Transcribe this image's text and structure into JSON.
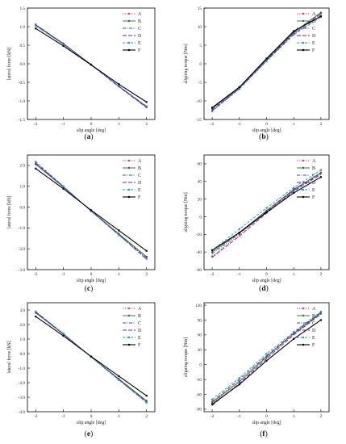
{
  "series_styles": [
    {
      "name": "A",
      "color": "#e0307a",
      "dash": "1.2,1.6",
      "marker": "circle"
    },
    {
      "name": "B",
      "color": "#2f6b2f",
      "dash": "",
      "marker": "circle"
    },
    {
      "name": "C",
      "color": "#3a4a8a",
      "dash": "4,1.5,1,1.5",
      "marker": "none"
    },
    {
      "name": "D",
      "color": "#7a1fa8",
      "dash": "5,2",
      "marker": "none"
    },
    {
      "name": "E",
      "color": "#2b8fd0",
      "dash": "3,2",
      "marker": "square"
    },
    {
      "name": "F",
      "color": "#000000",
      "dash": "",
      "marker": "square"
    }
  ],
  "chart_data": [
    {
      "type": "line",
      "panel_label": "a",
      "xlabel": "slip angle [deg]",
      "ylabel": "lateral force [kN]",
      "xlim": [
        -2.3,
        2.3
      ],
      "ylim": [
        -1.5,
        1.5
      ],
      "xticks": [
        -2,
        -1,
        0,
        1,
        2
      ],
      "xtick_labels": [
        "-2",
        "-1",
        "0",
        "1",
        "2"
      ],
      "yticks": [
        -1.5,
        -1.0,
        -0.5,
        0.0,
        0.5,
        1.0,
        1.5
      ],
      "ytick_labels": [
        "-1.5",
        "-1.0",
        "-0.5",
        "0.0",
        "0.5",
        "1.0",
        "1.5"
      ],
      "x": [
        -2,
        -1,
        0,
        1,
        2
      ],
      "series": [
        {
          "name": "A",
          "values": [
            1.06,
            0.55,
            -0.02,
            -0.6,
            -1.15
          ]
        },
        {
          "name": "B",
          "values": [
            1.05,
            0.54,
            -0.02,
            -0.61,
            -1.17
          ]
        },
        {
          "name": "C",
          "values": [
            1.03,
            0.53,
            -0.02,
            -0.6,
            -1.16
          ]
        },
        {
          "name": "D",
          "values": [
            1.04,
            0.53,
            -0.03,
            -0.62,
            -1.18
          ]
        },
        {
          "name": "E",
          "values": [
            1.02,
            0.52,
            -0.03,
            -0.6,
            -1.14
          ]
        },
        {
          "name": "F",
          "values": [
            0.95,
            0.48,
            -0.03,
            -0.55,
            -1.03
          ]
        }
      ]
    },
    {
      "type": "line",
      "panel_label": "b",
      "xlabel": "slip angle [deg]",
      "ylabel": "aligning torque [Nm]",
      "xlim": [
        -2.3,
        2.3
      ],
      "ylim": [
        -15,
        15
      ],
      "xticks": [
        -2,
        -1,
        0,
        1,
        2
      ],
      "xtick_labels": [
        "-2",
        "-1",
        "0",
        "1",
        "2"
      ],
      "yticks": [
        -15,
        -10,
        -5,
        0,
        5,
        10,
        15
      ],
      "ytick_labels": [
        "-15",
        "-10",
        "-5",
        "0",
        "5",
        "10",
        "15"
      ],
      "x": [
        -2,
        -1,
        0,
        1,
        2
      ],
      "series": [
        {
          "name": "A",
          "values": [
            -12.2,
            -6.5,
            1.0,
            8.2,
            13.6
          ]
        },
        {
          "name": "B",
          "values": [
            -12.0,
            -6.4,
            1.2,
            8.5,
            13.8
          ]
        },
        {
          "name": "C",
          "values": [
            -12.4,
            -6.6,
            0.8,
            8.0,
            13.0
          ]
        },
        {
          "name": "D",
          "values": [
            -12.6,
            -6.7,
            0.9,
            8.3,
            13.4
          ]
        },
        {
          "name": "E",
          "values": [
            -12.8,
            -6.8,
            0.7,
            7.8,
            12.6
          ]
        },
        {
          "name": "F",
          "values": [
            -11.8,
            -6.3,
            1.4,
            8.8,
            12.8
          ]
        }
      ]
    },
    {
      "type": "line",
      "panel_label": "c",
      "xlabel": "slip angle [deg]",
      "ylabel": "lateral force [kN]",
      "xlim": [
        -2.3,
        2.3
      ],
      "ylim": [
        -3.0,
        2.5
      ],
      "xticks": [
        -2,
        -1,
        0,
        1,
        2
      ],
      "xtick_labels": [
        "-2",
        "-1",
        "0",
        "1",
        "2"
      ],
      "yticks": [
        -3.0,
        -2.0,
        -1.0,
        0.0,
        1.0,
        2.0
      ],
      "ytick_labels": [
        "-3.0",
        "-2.0",
        "-1.0",
        "0.0",
        "1.0",
        "2.0"
      ],
      "x": [
        -2,
        -1,
        0,
        1,
        2
      ],
      "series": [
        {
          "name": "A",
          "values": [
            2.1,
            0.98,
            -0.18,
            -1.3,
            -2.4
          ]
        },
        {
          "name": "B",
          "values": [
            2.05,
            0.96,
            -0.18,
            -1.28,
            -2.38
          ]
        },
        {
          "name": "C",
          "values": [
            2.08,
            0.97,
            -0.19,
            -1.32,
            -2.45
          ]
        },
        {
          "name": "D",
          "values": [
            2.12,
            0.99,
            -0.19,
            -1.33,
            -2.5
          ]
        },
        {
          "name": "E",
          "values": [
            2.18,
            1.0,
            -0.2,
            -1.35,
            -2.48
          ]
        },
        {
          "name": "F",
          "values": [
            1.85,
            0.88,
            -0.15,
            -1.12,
            -2.1
          ]
        }
      ]
    },
    {
      "type": "line",
      "panel_label": "d",
      "xlabel": "slip angle [deg]",
      "ylabel": "aligning torque [Nm]",
      "xlim": [
        -2.3,
        2.3
      ],
      "ylim": [
        -60,
        70
      ],
      "xticks": [
        -2,
        -1,
        0,
        1,
        2
      ],
      "xtick_labels": [
        "-2",
        "-1",
        "0",
        "1",
        "2"
      ],
      "yticks": [
        -60,
        -40,
        -20,
        0,
        20,
        40,
        60
      ],
      "ytick_labels": [
        "-60",
        "-40",
        "-20",
        "0",
        "20",
        "40",
        "60"
      ],
      "x": [
        -2,
        -1,
        0,
        1,
        2
      ],
      "series": [
        {
          "name": "A",
          "values": [
            -45,
            -20,
            5,
            30,
            50
          ]
        },
        {
          "name": "B",
          "values": [
            -40,
            -18,
            7,
            31,
            50
          ]
        },
        {
          "name": "C",
          "values": [
            -42,
            -19,
            6,
            30,
            49
          ]
        },
        {
          "name": "D",
          "values": [
            -46,
            -22,
            4,
            29,
            48
          ]
        },
        {
          "name": "E",
          "values": [
            -38,
            -14,
            10,
            33,
            53
          ]
        },
        {
          "name": "F",
          "values": [
            -38,
            -18,
            5,
            27,
            45
          ]
        }
      ]
    },
    {
      "type": "line",
      "panel_label": "e",
      "xlabel": "slip angle [deg]",
      "ylabel": "lateral force [kN]",
      "xlim": [
        -2.3,
        2.3
      ],
      "ylim": [
        -4.0,
        3.5
      ],
      "xticks": [
        -2,
        -1,
        0,
        1,
        2
      ],
      "xtick_labels": [
        "-2",
        "-1",
        "0",
        "1",
        "2"
      ],
      "yticks": [
        -4.0,
        -3.0,
        -2.0,
        -1.0,
        0.0,
        1.0,
        2.0,
        3.0
      ],
      "ytick_labels": [
        "-4.0",
        "-3.0",
        "-2.0",
        "-1.0",
        "0.0",
        "1.0",
        "2.0",
        "3.0"
      ],
      "x": [
        -2,
        -1,
        0,
        1,
        2
      ],
      "series": [
        {
          "name": "A",
          "values": [
            2.85,
            1.35,
            -0.22,
            -1.75,
            -3.28
          ]
        },
        {
          "name": "B",
          "values": [
            2.8,
            1.33,
            -0.22,
            -1.74,
            -3.25
          ]
        },
        {
          "name": "C",
          "values": [
            2.82,
            1.34,
            -0.23,
            -1.78,
            -3.32
          ]
        },
        {
          "name": "D",
          "values": [
            2.88,
            1.36,
            -0.23,
            -1.8,
            -3.35
          ]
        },
        {
          "name": "E",
          "values": [
            2.9,
            1.38,
            -0.24,
            -1.82,
            -3.38
          ]
        },
        {
          "name": "F",
          "values": [
            2.55,
            1.22,
            -0.2,
            -1.55,
            -2.9
          ]
        }
      ]
    },
    {
      "type": "line",
      "panel_label": "f",
      "xlabel": "slip angle [deg]",
      "ylabel": "aligning torque [Nm]",
      "xlim": [
        -2.3,
        2.3
      ],
      "ylim": [
        -95,
        125
      ],
      "xticks": [
        -2,
        -1,
        0,
        1,
        2
      ],
      "xtick_labels": [
        "-2",
        "-1",
        "0",
        "1",
        "2"
      ],
      "yticks": [
        -90,
        -60,
        -30,
        0,
        30,
        60,
        90,
        120
      ],
      "ytick_labels": [
        "-90",
        "-60",
        "-30",
        "0",
        "30",
        "60",
        "90",
        "120"
      ],
      "x": [
        -2,
        -1,
        0,
        1,
        2
      ],
      "series": [
        {
          "name": "A",
          "values": [
            -78,
            -35,
            15,
            62,
            103
          ]
        },
        {
          "name": "B",
          "values": [
            -76,
            -34,
            16,
            63,
            104
          ]
        },
        {
          "name": "C",
          "values": [
            -74,
            -30,
            18,
            64,
            106
          ]
        },
        {
          "name": "D",
          "values": [
            -82,
            -38,
            12,
            60,
            102
          ]
        },
        {
          "name": "E",
          "values": [
            -70,
            -27,
            22,
            66,
            107
          ]
        },
        {
          "name": "F",
          "values": [
            -80,
            -40,
            8,
            52,
            90
          ]
        }
      ]
    }
  ]
}
